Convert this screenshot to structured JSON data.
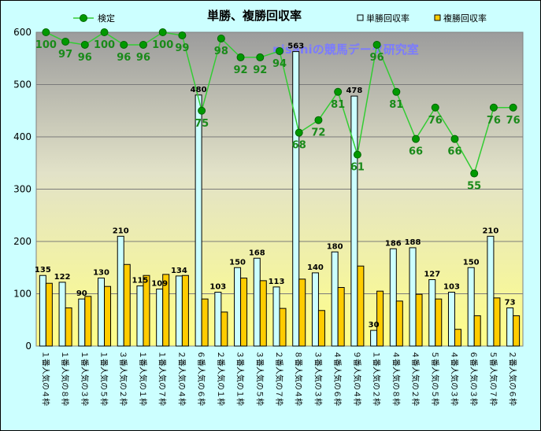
{
  "chart_data": {
    "type": "bar",
    "title": "単勝、複勝回収率",
    "watermark": "nisaniの競馬データ研究室",
    "ylim": [
      0,
      600
    ],
    "yticks": [
      0,
      100,
      200,
      300,
      400,
      500,
      600
    ],
    "grid": true,
    "legend_position": "top",
    "categories": [
      "１番人気の４枠",
      "１番人気の８枠",
      "１番人気の３枠",
      "１番人気の５枠",
      "３番人気の２枠",
      "１番人気の１枠",
      "１番人気の７枠",
      "２番人気の４枠",
      "６番人気の６枠",
      "２番人気の１枠",
      "３番人気の１枠",
      "３番人気の５枠",
      "２番人気の７枠",
      "８番人気の４枠",
      "３番人気の３枠",
      "４番人気の６枠",
      "９番人気の４枠",
      "１番人気の２枠",
      "４番人気の８枠",
      "４番人気の２枠",
      "５番人気の５枠",
      "４番人気の３枠",
      "６番人気の３枠",
      "５番人気の７枠",
      "２番人気の６枠"
    ],
    "series": [
      {
        "name": "単勝回収率",
        "type": "bar",
        "color": "#ccffff",
        "values": [
          135,
          122,
          90,
          130,
          210,
          115,
          109,
          134,
          480,
          103,
          150,
          168,
          113,
          563,
          140,
          180,
          478,
          30,
          186,
          188,
          127,
          103,
          150,
          210,
          73
        ]
      },
      {
        "name": "複勝回収率",
        "type": "bar",
        "color": "#ffcc00",
        "values": [
          120,
          73,
          95,
          114,
          156,
          135,
          137,
          135,
          90,
          65,
          130,
          125,
          72,
          128,
          68,
          112,
          153,
          105,
          86,
          99,
          90,
          32,
          58,
          92,
          58
        ]
      },
      {
        "name": "検定",
        "type": "line",
        "color": "#33cc33",
        "values": [
          100,
          97,
          96,
          100,
          96,
          96,
          100,
          99,
          75,
          98,
          92,
          92,
          94,
          68,
          72,
          81,
          61,
          96,
          81,
          66,
          76,
          66,
          55,
          76,
          76
        ]
      }
    ],
    "kentei_scale_factor": 6
  }
}
